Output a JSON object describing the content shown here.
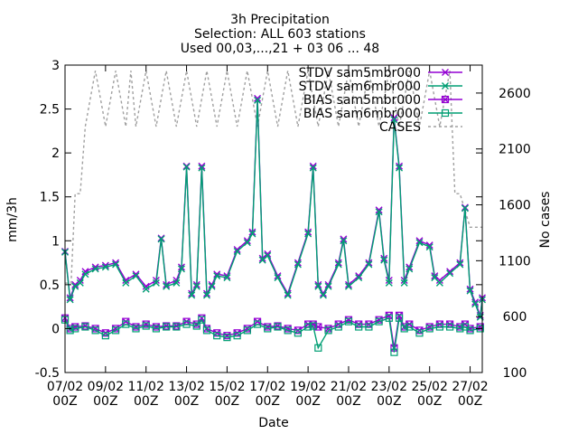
{
  "chart_data": {
    "type": "line",
    "title": "3h Precipitation",
    "subtitle1": "Selection: ALL     603 stations",
    "subtitle2": "Used 00,03,...,21 + 03 06 ... 48",
    "xlabel": "Date",
    "ylabel": "mm/3h",
    "y2label": "No cases",
    "xlim_days": [
      7.0,
      27.6
    ],
    "ylim": [
      -0.5,
      3.0
    ],
    "y2lim": [
      100,
      2850
    ],
    "xticks": [
      {
        "day": 7,
        "top": "07/02",
        "bottom": "00Z"
      },
      {
        "day": 9,
        "top": "09/02",
        "bottom": "00Z"
      },
      {
        "day": 11,
        "top": "11/02",
        "bottom": "00Z"
      },
      {
        "day": 13,
        "top": "13/02",
        "bottom": "00Z"
      },
      {
        "day": 15,
        "top": "15/02",
        "bottom": "00Z"
      },
      {
        "day": 17,
        "top": "17/02",
        "bottom": "00Z"
      },
      {
        "day": 19,
        "top": "19/02",
        "bottom": "00Z"
      },
      {
        "day": 21,
        "top": "21/02",
        "bottom": "00Z"
      },
      {
        "day": 23,
        "top": "23/02",
        "bottom": "00Z"
      },
      {
        "day": 25,
        "top": "25/02",
        "bottom": "00Z"
      },
      {
        "day": 27,
        "top": "27/02",
        "bottom": "00Z"
      }
    ],
    "yticks": [
      "-0.5",
      "0",
      "0.5",
      "1",
      "1.5",
      "2",
      "2.5",
      "3"
    ],
    "y2ticks": [
      "100",
      "600",
      "1100",
      "1600",
      "2100",
      "2600"
    ],
    "grid": false,
    "legend_position": "top-right",
    "colors": {
      "purple": "#9400d3",
      "green": "#009e73",
      "gray": "#a0a0a0"
    },
    "series": [
      {
        "name": "STDV sam5mbr000",
        "color": "#9400d3",
        "marker": "x",
        "axis": "y",
        "x": [
          7.0,
          7.25,
          7.5,
          7.75,
          8.0,
          8.5,
          9.0,
          9.5,
          10.0,
          10.5,
          11.0,
          11.5,
          11.75,
          12.0,
          12.5,
          12.75,
          13.0,
          13.25,
          13.5,
          13.75,
          14.0,
          14.25,
          14.5,
          15.0,
          15.5,
          16.0,
          16.25,
          16.5,
          16.75,
          17.0,
          17.5,
          18.0,
          18.5,
          19.0,
          19.25,
          19.5,
          19.75,
          20.0,
          20.5,
          20.75,
          21.0,
          21.5,
          22.0,
          22.5,
          22.75,
          23.0,
          23.25,
          23.5,
          23.75,
          24.0,
          24.5,
          25.0,
          25.25,
          25.5,
          26.0,
          26.5,
          26.75,
          27.0,
          27.25,
          27.5,
          27.6
        ],
        "y": [
          0.88,
          0.35,
          0.5,
          0.55,
          0.65,
          0.7,
          0.72,
          0.75,
          0.55,
          0.62,
          0.48,
          0.55,
          1.03,
          0.5,
          0.55,
          0.7,
          1.85,
          0.4,
          0.5,
          1.85,
          0.4,
          0.5,
          0.62,
          0.6,
          0.9,
          1.0,
          1.1,
          2.62,
          0.8,
          0.85,
          0.6,
          0.4,
          0.75,
          1.1,
          1.85,
          0.5,
          0.4,
          0.5,
          0.75,
          1.02,
          0.5,
          0.6,
          0.75,
          1.35,
          0.8,
          0.55,
          2.4,
          1.85,
          0.55,
          0.7,
          1.0,
          0.95,
          0.6,
          0.55,
          0.65,
          0.75,
          1.38,
          0.45,
          0.3,
          0.15,
          0.35
        ]
      },
      {
        "name": "STDV sam6mbr000",
        "color": "#009e73",
        "marker": "x",
        "axis": "y",
        "x": [
          7.0,
          7.25,
          7.5,
          7.75,
          8.0,
          8.5,
          9.0,
          9.5,
          10.0,
          10.5,
          11.0,
          11.5,
          11.75,
          12.0,
          12.5,
          12.75,
          13.0,
          13.25,
          13.5,
          13.75,
          14.0,
          14.25,
          14.5,
          15.0,
          15.5,
          16.0,
          16.25,
          16.5,
          16.75,
          17.0,
          17.5,
          18.0,
          18.5,
          19.0,
          19.25,
          19.5,
          19.75,
          20.0,
          20.5,
          20.75,
          21.0,
          21.5,
          22.0,
          22.5,
          22.75,
          23.0,
          23.25,
          23.5,
          23.75,
          24.0,
          24.5,
          25.0,
          25.25,
          25.5,
          26.0,
          26.5,
          26.75,
          27.0,
          27.25,
          27.5,
          27.6
        ],
        "y": [
          0.87,
          0.33,
          0.48,
          0.52,
          0.62,
          0.68,
          0.7,
          0.73,
          0.52,
          0.6,
          0.45,
          0.52,
          1.02,
          0.48,
          0.52,
          0.68,
          1.84,
          0.38,
          0.48,
          1.83,
          0.38,
          0.48,
          0.6,
          0.58,
          0.88,
          0.98,
          1.08,
          2.6,
          0.78,
          0.83,
          0.58,
          0.38,
          0.73,
          1.08,
          1.83,
          0.48,
          0.38,
          0.48,
          0.73,
          1.0,
          0.48,
          0.58,
          0.73,
          1.33,
          0.78,
          0.52,
          2.38,
          1.83,
          0.52,
          0.68,
          0.98,
          0.93,
          0.58,
          0.52,
          0.63,
          0.73,
          1.37,
          0.43,
          0.28,
          0.13,
          0.33
        ]
      },
      {
        "name": "BIAS sam5mbr000",
        "color": "#9400d3",
        "marker": "box-x",
        "axis": "y",
        "x": [
          7.0,
          7.25,
          7.5,
          8.0,
          8.5,
          9.0,
          9.5,
          10.0,
          10.5,
          11.0,
          11.5,
          12.0,
          12.5,
          13.0,
          13.5,
          13.75,
          14.0,
          14.5,
          15.0,
          15.5,
          16.0,
          16.5,
          17.0,
          17.5,
          18.0,
          18.5,
          19.0,
          19.25,
          19.5,
          20.0,
          20.5,
          21.0,
          21.5,
          22.0,
          22.5,
          23.0,
          23.25,
          23.5,
          23.75,
          24.0,
          24.5,
          25.0,
          25.5,
          26.0,
          26.5,
          26.75,
          27.0,
          27.5
        ],
        "y": [
          0.12,
          0.0,
          0.02,
          0.03,
          0.0,
          -0.05,
          0.0,
          0.08,
          0.02,
          0.05,
          0.02,
          0.03,
          0.03,
          0.08,
          0.05,
          0.12,
          0.0,
          -0.05,
          -0.08,
          -0.05,
          0.0,
          0.08,
          0.02,
          0.03,
          0.0,
          -0.02,
          0.05,
          0.05,
          0.02,
          0.0,
          0.05,
          0.1,
          0.05,
          0.05,
          0.1,
          0.15,
          -0.22,
          0.15,
          0.02,
          0.05,
          -0.02,
          0.02,
          0.05,
          0.05,
          0.02,
          0.05,
          0.0,
          0.02
        ]
      },
      {
        "name": "BIAS sam6mbr000",
        "color": "#009e73",
        "marker": "box",
        "axis": "y",
        "x": [
          7.0,
          7.25,
          7.5,
          8.0,
          8.5,
          9.0,
          9.5,
          10.0,
          10.5,
          11.0,
          11.5,
          12.0,
          12.5,
          13.0,
          13.5,
          13.75,
          14.0,
          14.5,
          15.0,
          15.5,
          16.0,
          16.5,
          17.0,
          17.5,
          18.0,
          18.5,
          19.0,
          19.25,
          19.5,
          20.0,
          20.5,
          21.0,
          21.5,
          22.0,
          22.5,
          23.0,
          23.25,
          23.5,
          23.75,
          24.0,
          24.5,
          25.0,
          25.5,
          26.0,
          26.5,
          26.75,
          27.0,
          27.5
        ],
        "y": [
          0.1,
          -0.02,
          0.0,
          0.02,
          -0.02,
          -0.08,
          -0.02,
          0.05,
          0.0,
          0.03,
          0.0,
          0.02,
          0.02,
          0.05,
          0.03,
          0.1,
          -0.02,
          -0.08,
          -0.1,
          -0.08,
          -0.02,
          0.05,
          0.0,
          0.02,
          -0.02,
          -0.05,
          0.02,
          0.03,
          -0.22,
          -0.02,
          0.02,
          0.08,
          0.02,
          0.02,
          0.08,
          0.12,
          -0.27,
          0.12,
          0.0,
          0.02,
          -0.05,
          0.0,
          0.02,
          0.02,
          0.0,
          0.02,
          -0.02,
          0.0
        ]
      },
      {
        "name": "CASES",
        "color": "#a0a0a0",
        "marker": "none",
        "dash": true,
        "axis": "y2",
        "x": [
          7.0,
          7.3,
          7.5,
          7.75,
          8.0,
          8.5,
          9.0,
          9.5,
          10.0,
          10.25,
          10.5,
          11.0,
          11.5,
          12.0,
          12.5,
          13.0,
          13.5,
          14.0,
          14.5,
          15.0,
          15.5,
          16.0,
          16.5,
          17.0,
          17.5,
          18.0,
          18.5,
          19.0,
          19.5,
          20.0,
          20.5,
          21.0,
          21.5,
          22.0,
          22.5,
          23.0,
          23.5,
          24.0,
          24.5,
          25.0,
          25.5,
          26.0,
          26.25,
          26.5,
          27.0,
          27.3,
          27.6
        ],
        "y": [
          900,
          900,
          1700,
          1700,
          2300,
          2800,
          2300,
          2800,
          2300,
          2800,
          2300,
          2800,
          2300,
          2800,
          2300,
          2800,
          2300,
          2800,
          2300,
          2800,
          2300,
          2800,
          2300,
          2800,
          2300,
          2800,
          2300,
          2800,
          2300,
          2800,
          2300,
          2800,
          2300,
          2800,
          2300,
          2800,
          2300,
          2800,
          2300,
          2800,
          2300,
          2800,
          1700,
          1700,
          1400,
          1400,
          1400
        ]
      }
    ]
  }
}
